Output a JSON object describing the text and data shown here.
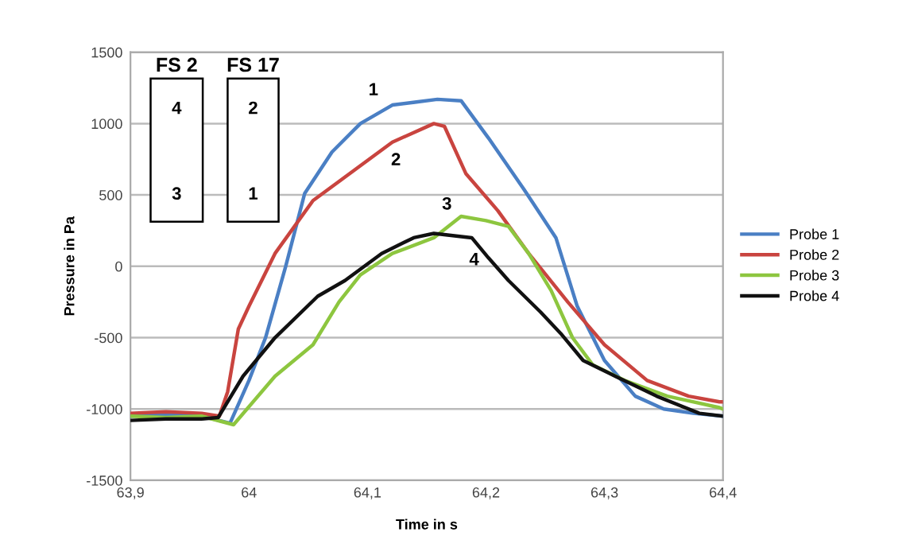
{
  "chart_data": {
    "type": "line",
    "xlabel": "Time in s",
    "ylabel": "Pressure in Pa",
    "xlim": [
      63.9,
      64.4
    ],
    "xticks": [
      {
        "value": 63.9,
        "label": "63,9"
      },
      {
        "value": 64,
        "label": "64"
      },
      {
        "value": 64.1,
        "label": "64,1"
      },
      {
        "value": 64.2,
        "label": "64,2"
      },
      {
        "value": 64.3,
        "label": "64,3"
      },
      {
        "value": 64.4,
        "label": "64,4"
      }
    ],
    "ylim": [
      -1500,
      1500
    ],
    "yticks": [
      -1500,
      -1000,
      -500,
      0,
      500,
      1000,
      1500
    ],
    "grid": "y",
    "legend": "right",
    "marker": "none",
    "line_style": "solid",
    "series": [
      {
        "name": "Probe 1",
        "color": "#4a7fc4",
        "x": [
          63.9,
          63.93,
          63.96,
          63.984,
          64.0,
          64.014,
          64.031,
          64.047,
          64.07,
          64.094,
          64.121,
          64.14,
          64.159,
          64.179,
          64.202,
          64.232,
          64.259,
          64.277,
          64.3,
          64.326,
          64.35,
          64.375,
          64.4
        ],
        "values": [
          -1050,
          -1040,
          -1050,
          -1100,
          -800,
          -500,
          0,
          510,
          800,
          1000,
          1130,
          1150,
          1170,
          1160,
          900,
          540,
          200,
          -280,
          -660,
          -910,
          -1000,
          -1030,
          -1050
        ]
      },
      {
        "name": "Probe 2",
        "color": "#c9443f",
        "x": [
          63.9,
          63.93,
          63.96,
          63.975,
          63.982,
          63.991,
          64.0,
          64.022,
          64.054,
          64.085,
          64.121,
          64.156,
          64.165,
          64.183,
          64.21,
          64.236,
          64.269,
          64.3,
          64.336,
          64.371,
          64.397,
          64.4
        ],
        "values": [
          -1030,
          -1020,
          -1030,
          -1050,
          -880,
          -440,
          -280,
          90,
          460,
          650,
          870,
          1000,
          980,
          650,
          390,
          90,
          -250,
          -550,
          -800,
          -910,
          -950,
          -950
        ]
      },
      {
        "name": "Probe 3",
        "color": "#8dc63f",
        "x": [
          63.9,
          63.93,
          63.96,
          63.987,
          64.022,
          64.054,
          64.076,
          64.094,
          64.121,
          64.156,
          64.179,
          64.2,
          64.219,
          64.236,
          64.255,
          64.273,
          64.29,
          64.317,
          64.353,
          64.397,
          64.4
        ],
        "values": [
          -1050,
          -1060,
          -1050,
          -1110,
          -770,
          -550,
          -250,
          -60,
          90,
          200,
          350,
          320,
          280,
          90,
          -170,
          -500,
          -690,
          -800,
          -910,
          -990,
          -1000
        ]
      },
      {
        "name": "Probe 4",
        "color": "#111111",
        "x": [
          63.9,
          63.93,
          63.96,
          63.974,
          63.995,
          64.022,
          64.058,
          64.081,
          64.112,
          64.139,
          64.156,
          64.188,
          64.202,
          64.219,
          64.246,
          64.263,
          64.282,
          64.309,
          64.344,
          64.38,
          64.4
        ],
        "values": [
          -1080,
          -1070,
          -1070,
          -1060,
          -770,
          -500,
          -210,
          -100,
          90,
          200,
          230,
          200,
          60,
          -100,
          -320,
          -470,
          -660,
          -770,
          -910,
          -1030,
          -1050
        ]
      }
    ],
    "annotations": [
      "1",
      "2",
      "3",
      "4",
      "FS 2",
      "FS 17",
      "4",
      "3",
      "2",
      "1"
    ]
  }
}
